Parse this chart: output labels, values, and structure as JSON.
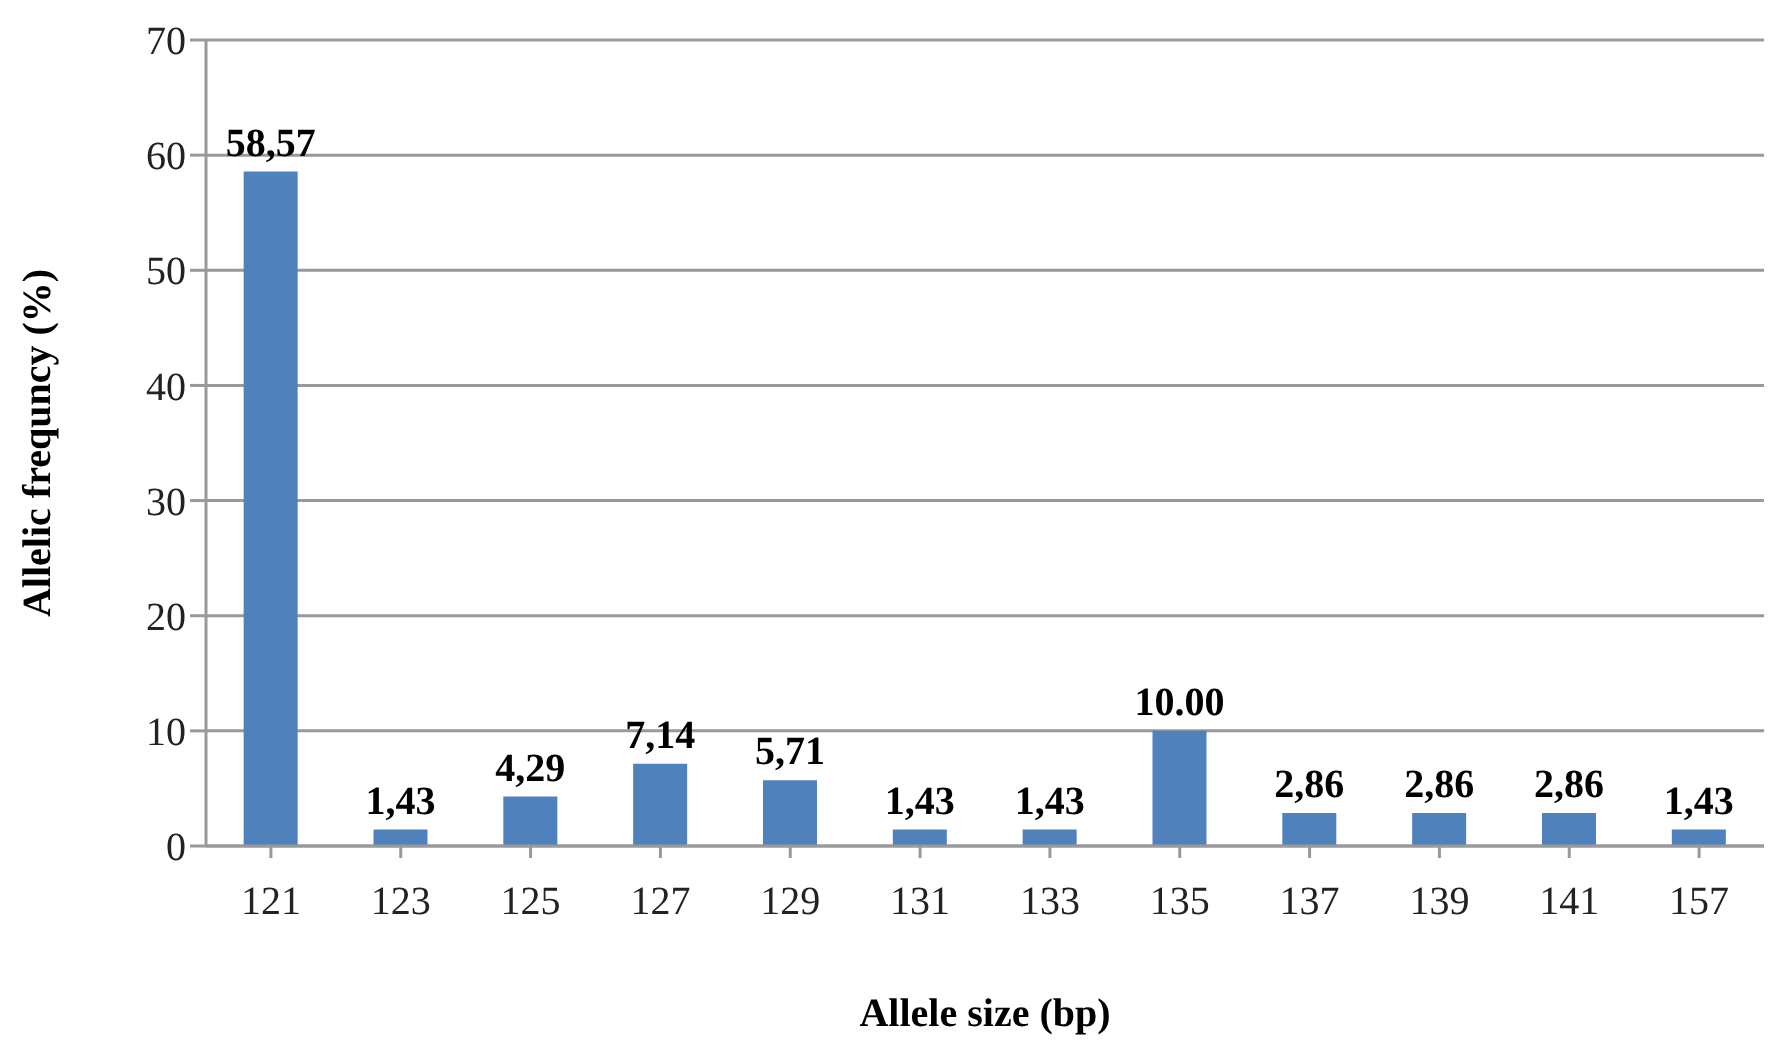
{
  "chart_data": {
    "type": "bar",
    "xlabel": "Allele size (bp)",
    "ylabel": "Allelic frequncy (%)",
    "categories": [
      "121",
      "123",
      "125",
      "127",
      "129",
      "131",
      "133",
      "135",
      "137",
      "139",
      "141",
      "157"
    ],
    "values": [
      58.57,
      1.43,
      4.29,
      7.14,
      5.71,
      1.43,
      1.43,
      10.0,
      2.86,
      2.86,
      2.86,
      1.43
    ],
    "value_labels": [
      "58,57",
      "1,43",
      "4,29",
      "7,14",
      "5,71",
      "1,43",
      "1,43",
      "10.00",
      "2,86",
      "2,86",
      "2,86",
      "1,43"
    ],
    "color": "#4f81bd",
    "ylim": [
      0,
      70
    ],
    "yticks": [
      0,
      10,
      20,
      30,
      40,
      50,
      60,
      70
    ],
    "grid": "y"
  }
}
